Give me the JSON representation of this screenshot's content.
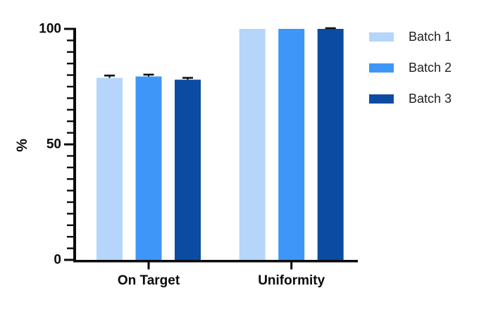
{
  "chart_data": {
    "type": "bar",
    "title": "",
    "ylabel": "%",
    "xlabel": "",
    "categories": [
      "On Target",
      "Uniformity"
    ],
    "series": [
      {
        "name": "Batch 1",
        "color": "#B5D5FA",
        "values": [
          78.8,
          100
        ],
        "errors": [
          1.0,
          0
        ]
      },
      {
        "name": "Batch 2",
        "color": "#3E96F8",
        "values": [
          79.4,
          100
        ],
        "errors": [
          0.8,
          0
        ]
      },
      {
        "name": "Batch 3",
        "color": "#0B4CA2",
        "values": [
          78.0,
          100
        ],
        "errors": [
          0.8,
          0.3
        ]
      }
    ],
    "ylim": [
      0,
      100
    ],
    "y_major_ticks": [
      0,
      50,
      100
    ],
    "y_minor_tick_step": 5,
    "grid": false,
    "legend_position": "right",
    "error_bars": "upper-sd-with-cap"
  },
  "colors": {
    "axis": "#0a0a0a",
    "tick_text": "#0a0a0a",
    "category_text": "#0a0a0a",
    "error_bar": "#111111",
    "background": "#ffffff"
  }
}
